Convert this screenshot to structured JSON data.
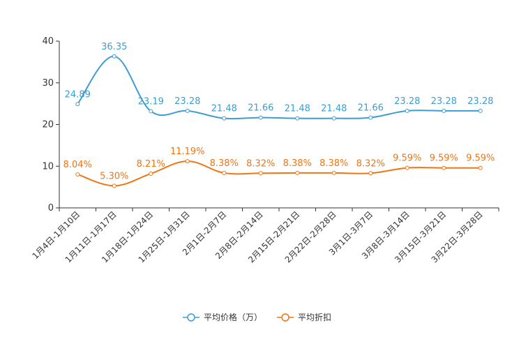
{
  "chart_data": {
    "type": "line",
    "categories": [
      "1月4日-1月10日",
      "1月11日-1月17日",
      "1月18日-1月24日",
      "1月25日-1月31日",
      "2月1日-2月7日",
      "2月8日-2月14日",
      "2月15日-2月21日",
      "2月22日-2月28日",
      "3月1日-3月7日",
      "3月8日-3月14日",
      "3月15日-3月21日",
      "3月22日-3月28日"
    ],
    "series": [
      {
        "name": "平均价格（万）",
        "color": "#3d9dd2",
        "values": [
          24.89,
          36.35,
          23.19,
          23.28,
          21.48,
          21.66,
          21.48,
          21.48,
          21.66,
          23.28,
          23.28,
          23.28
        ],
        "labels": [
          "24.89",
          "36.35",
          "23.19",
          "23.28",
          "21.48",
          "21.66",
          "21.48",
          "21.48",
          "21.66",
          "23.28",
          "23.28",
          "23.28"
        ]
      },
      {
        "name": "平均折扣",
        "color": "#f07515",
        "values": [
          8.04,
          5.3,
          8.21,
          11.19,
          8.38,
          8.32,
          8.38,
          8.38,
          8.32,
          9.59,
          9.59,
          9.59
        ],
        "labels": [
          "8.04%",
          "5.30%",
          "8.21%",
          "11.19%",
          "8.38%",
          "8.32%",
          "8.38%",
          "8.38%",
          "8.32%",
          "9.59%",
          "9.59%",
          "9.59%"
        ]
      }
    ],
    "ylim": [
      0,
      40
    ],
    "yticks": [
      "0",
      "10",
      "20",
      "30",
      "40"
    ],
    "grid": false,
    "legend_position": "bottom-center",
    "title": "",
    "xlabel": "",
    "ylabel": ""
  }
}
